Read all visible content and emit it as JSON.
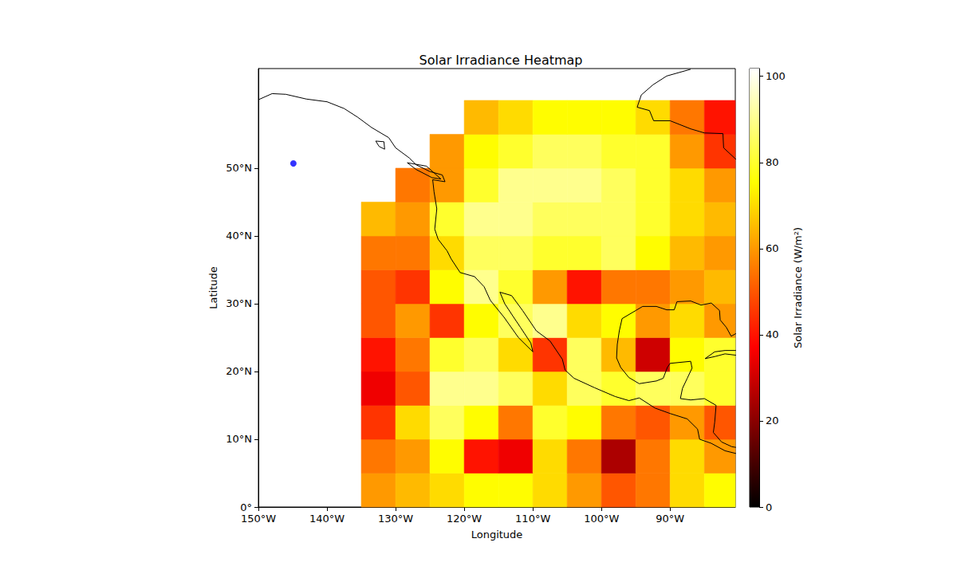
{
  "chart_data": {
    "type": "heatmap",
    "title": "Solar Irradiance Heatmap",
    "x_label": "Longitude",
    "y_label": "Latitude",
    "xlim": [
      -150,
      -80.5
    ],
    "ylim": [
      0,
      64.7
    ],
    "xticks": [
      {
        "value": -150,
        "label": "150°W"
      },
      {
        "value": -140,
        "label": "140°W"
      },
      {
        "value": -130,
        "label": "130°W"
      },
      {
        "value": -120,
        "label": "120°W"
      },
      {
        "value": -110,
        "label": "110°W"
      },
      {
        "value": -100,
        "label": "100°W"
      },
      {
        "value": -90,
        "label": "90°W"
      }
    ],
    "yticks": [
      {
        "value": 0,
        "label": "0°"
      },
      {
        "value": 10,
        "label": "10°N"
      },
      {
        "value": 20,
        "label": "20°N"
      },
      {
        "value": 30,
        "label": "30°N"
      },
      {
        "value": 40,
        "label": "40°N"
      },
      {
        "value": 50,
        "label": "50°N"
      }
    ],
    "grid": false,
    "x_edges": [
      -135,
      -130,
      -125,
      -120,
      -115,
      -110,
      -105,
      -100,
      -95,
      -90,
      -85,
      -80
    ],
    "y_edges": [
      0,
      5,
      10,
      15,
      20,
      25,
      30,
      35,
      40,
      45,
      50,
      55,
      60
    ],
    "cells": [
      [
        60,
        65,
        70,
        75,
        75,
        70,
        60,
        50,
        55,
        70,
        75
      ],
      [
        55,
        60,
        75,
        40,
        35,
        70,
        55,
        25,
        55,
        70,
        60
      ],
      [
        45,
        70,
        85,
        75,
        55,
        80,
        75,
        55,
        50,
        60,
        50
      ],
      [
        35,
        50,
        90,
        90,
        85,
        70,
        85,
        80,
        85,
        85,
        80
      ],
      [
        40,
        55,
        80,
        85,
        70,
        45,
        85,
        65,
        30,
        75,
        80
      ],
      [
        50,
        60,
        45,
        75,
        85,
        90,
        70,
        75,
        60,
        70,
        60
      ],
      [
        50,
        45,
        75,
        90,
        80,
        60,
        40,
        55,
        55,
        60,
        65
      ],
      [
        55,
        55,
        70,
        85,
        85,
        80,
        80,
        85,
        75,
        65,
        60
      ],
      [
        65,
        60,
        80,
        90,
        90,
        85,
        85,
        85,
        80,
        70,
        65
      ],
      [
        null,
        55,
        60,
        80,
        90,
        90,
        90,
        85,
        80,
        70,
        60
      ],
      [
        null,
        null,
        60,
        75,
        80,
        85,
        85,
        80,
        80,
        60,
        45
      ],
      [
        null,
        null,
        null,
        65,
        70,
        75,
        75,
        75,
        70,
        55,
        40
      ]
    ],
    "colorbar": {
      "label": "Solar Irradiance (W/m²)",
      "lim": [
        0,
        101.8
      ],
      "ticks": [
        0,
        20,
        40,
        60,
        80,
        100
      ]
    },
    "coastlines": [
      [
        [
          -150,
          60.1
        ],
        [
          -148,
          61
        ],
        [
          -146,
          60.9
        ],
        [
          -143,
          60.2
        ],
        [
          -140,
          59.8
        ],
        [
          -137.5,
          58.8
        ],
        [
          -135.5,
          57.5
        ],
        [
          -133.5,
          56
        ],
        [
          -131,
          54.5
        ],
        [
          -130,
          53
        ],
        [
          -128,
          51.5
        ],
        [
          -127,
          50.5
        ],
        [
          -125,
          49.5
        ],
        [
          -123.2,
          49
        ],
        [
          -122.8,
          48
        ],
        [
          -124.6,
          48.3
        ],
        [
          -124.4,
          46.5
        ],
        [
          -124,
          44
        ],
        [
          -124.3,
          41
        ],
        [
          -123.8,
          39.5
        ],
        [
          -122.5,
          37.8
        ],
        [
          -121.9,
          36.6
        ],
        [
          -120.6,
          34.6
        ],
        [
          -118.5,
          34
        ],
        [
          -117.1,
          32.5
        ],
        [
          -116.2,
          30.5
        ],
        [
          -114.2,
          28
        ],
        [
          -112.1,
          25
        ],
        [
          -110,
          22.9
        ],
        [
          -110.3,
          24.2
        ],
        [
          -111.8,
          26.5
        ],
        [
          -112.8,
          28
        ],
        [
          -114.1,
          30
        ],
        [
          -114.8,
          31.7
        ],
        [
          -113.1,
          31.2
        ],
        [
          -111.5,
          29
        ],
        [
          -109.5,
          26
        ],
        [
          -107.5,
          24.5
        ],
        [
          -105.7,
          21.8
        ],
        [
          -105.3,
          20.2
        ],
        [
          -104,
          19
        ],
        [
          -101,
          17.6
        ],
        [
          -98,
          16.3
        ],
        [
          -96,
          15.7
        ],
        [
          -94.5,
          16.1
        ],
        [
          -92.2,
          14.6
        ],
        [
          -90,
          13.8
        ],
        [
          -87.5,
          13
        ],
        [
          -86,
          11.5
        ],
        [
          -85.7,
          10
        ],
        [
          -84,
          9.4
        ],
        [
          -82,
          8.3
        ],
        [
          -80.4,
          7.9
        ]
      ],
      [
        [
          -80.4,
          25.6
        ],
        [
          -81.1,
          25.2
        ],
        [
          -81.8,
          26.5
        ],
        [
          -82.7,
          27.6
        ],
        [
          -82.8,
          29
        ],
        [
          -84,
          30.1
        ],
        [
          -85.5,
          29.8
        ],
        [
          -87,
          30.4
        ],
        [
          -89,
          30.3
        ],
        [
          -89.4,
          29.1
        ],
        [
          -90.5,
          29.1
        ],
        [
          -92,
          29.6
        ],
        [
          -94,
          29.6
        ],
        [
          -95,
          29
        ],
        [
          -97,
          27.8
        ],
        [
          -97.4,
          26
        ],
        [
          -97.7,
          24
        ],
        [
          -97.8,
          22
        ],
        [
          -97.2,
          20.6
        ],
        [
          -96,
          19.1
        ],
        [
          -94.5,
          18.2
        ],
        [
          -92,
          18.6
        ],
        [
          -91,
          19
        ],
        [
          -90.4,
          20.6
        ],
        [
          -90,
          21.2
        ],
        [
          -87,
          21.5
        ],
        [
          -86.8,
          20.5
        ],
        [
          -87.5,
          19
        ],
        [
          -88.2,
          17.5
        ],
        [
          -88.5,
          16
        ],
        [
          -87,
          15.8
        ],
        [
          -85,
          16
        ],
        [
          -83.3,
          15
        ],
        [
          -83.5,
          12.5
        ],
        [
          -83.7,
          11
        ],
        [
          -82.5,
          9.6
        ],
        [
          -81,
          8.9
        ],
        [
          -80.4,
          8.8
        ]
      ],
      [
        [
          -80.4,
          23.1
        ],
        [
          -82,
          23.1
        ],
        [
          -83.5,
          22.9
        ],
        [
          -84.9,
          21.9
        ],
        [
          -83.5,
          22.2
        ],
        [
          -82,
          22.6
        ],
        [
          -80.4,
          22.4
        ]
      ],
      [
        [
          -128.3,
          50.8
        ],
        [
          -125.5,
          50.3
        ],
        [
          -123.4,
          48.4
        ],
        [
          -124.7,
          48.6
        ],
        [
          -127,
          49.8
        ],
        [
          -128.3,
          50.8
        ]
      ],
      [
        [
          -132.9,
          54
        ],
        [
          -131.7,
          53.9
        ],
        [
          -131.6,
          52.8
        ],
        [
          -132.4,
          53.2
        ],
        [
          -132.9,
          54
        ]
      ],
      [
        [
          -87,
          64.6
        ],
        [
          -90.5,
          63.6
        ],
        [
          -92.5,
          62.3
        ],
        [
          -94.2,
          60.8
        ],
        [
          -94.8,
          59
        ],
        [
          -93,
          58.5
        ],
        [
          -92.4,
          57
        ],
        [
          -90,
          57
        ],
        [
          -87,
          55.8
        ],
        [
          -85,
          55.2
        ],
        [
          -82.3,
          55.1
        ],
        [
          -82.2,
          53
        ],
        [
          -80.4,
          51.3
        ]
      ]
    ],
    "points": {
      "x": [
        -144.9
      ],
      "y": [
        50.7
      ],
      "color": "#0000ff",
      "marker": "circle"
    }
  }
}
